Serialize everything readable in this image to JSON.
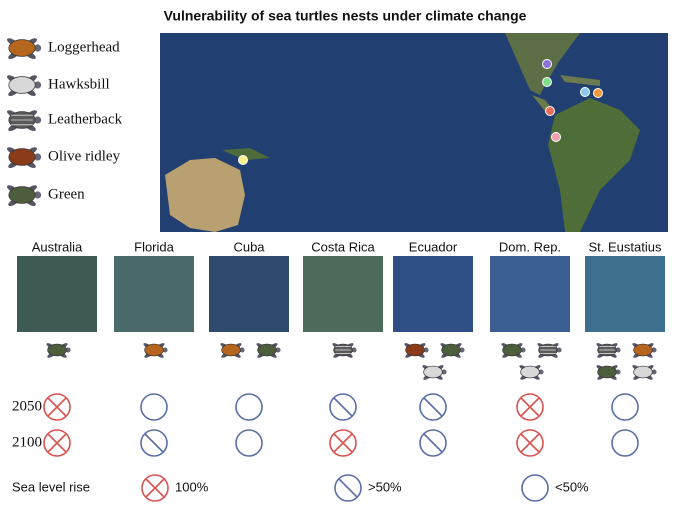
{
  "title": "Vulnerability of sea turtles nests under climate change",
  "legend": [
    "Loggerhead",
    "Hawksbill",
    "Leatherback",
    "Olive ridley",
    "Green"
  ],
  "sites": [
    "Australia",
    "Florida",
    "Cuba",
    "Costa Rica",
    "Ecuador",
    "Dom. Rep.",
    "St. Eustatius"
  ],
  "rows": [
    {
      "label": "2050",
      "values": [
        0,
        2,
        2,
        1,
        1,
        0,
        2
      ]
    },
    {
      "label": "2100",
      "values": [
        0,
        1,
        2,
        0,
        1,
        0,
        2
      ]
    }
  ],
  "key": {
    "label": "Sea level rise",
    "items": [
      "100%",
      ">50%",
      "<50%"
    ]
  }
}
